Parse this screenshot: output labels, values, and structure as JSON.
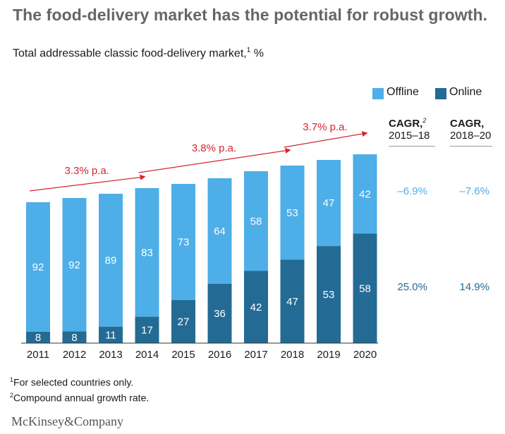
{
  "title": "The food-delivery market has the potential for robust growth.",
  "subtitle": "Total addressable classic food-delivery market,",
  "subtitle_sup": "1",
  "subtitle_unit": " %",
  "legend": [
    {
      "label": "Offline",
      "color": "#4eaee8"
    },
    {
      "label": "Online",
      "color": "#236b94"
    }
  ],
  "cagr_headers": [
    {
      "line1": "CAGR,",
      "sup": "2",
      "line2": "2015–18"
    },
    {
      "line1": "CAGR,",
      "sup": "",
      "line2": "2018–20"
    }
  ],
  "cagr_offline": [
    "–6.9%",
    "–7.6%"
  ],
  "cagr_online": [
    "25.0%",
    "14.9%"
  ],
  "growth_annotations": [
    {
      "label": "3.3% p.a."
    },
    {
      "label": "3.8% p.a."
    },
    {
      "label": "3.7% p.a."
    }
  ],
  "chart_data": {
    "type": "bar",
    "stacked": true,
    "categories": [
      "2011",
      "2012",
      "2013",
      "2014",
      "2015",
      "2016",
      "2017",
      "2018",
      "2019",
      "2020"
    ],
    "series": [
      {
        "name": "Online",
        "values": [
          8,
          8,
          11,
          17,
          27,
          36,
          42,
          47,
          53,
          58
        ],
        "color": "#236b94"
      },
      {
        "name": "Offline",
        "values": [
          92,
          92,
          89,
          83,
          73,
          64,
          58,
          53,
          47,
          42
        ],
        "color": "#4eaee8"
      }
    ],
    "relative_total_heights": [
      100,
      103,
      106,
      110,
      113,
      117,
      122,
      126,
      130,
      134
    ],
    "annotation_color": "#d4262e"
  },
  "footnotes": [
    {
      "sup": "1",
      "text": "For selected countries only."
    },
    {
      "sup": "2",
      "text": "Compound annual growth rate."
    }
  ],
  "logo": "McKinsey&Company"
}
